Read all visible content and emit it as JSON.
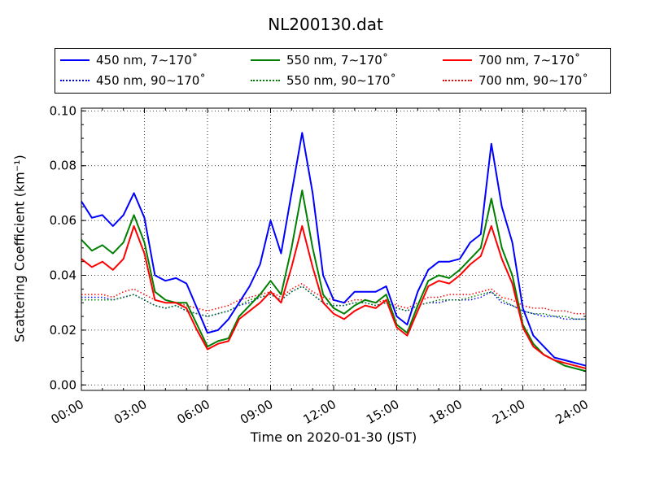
{
  "chart_data": {
    "type": "line",
    "title": "NL200130.dat",
    "xlabel": "Time on 2020-01-30 (JST)",
    "ylabel": "Scattering Coefficient (km⁻¹)",
    "x_ticks": [
      "00:00",
      "03:00",
      "06:00",
      "09:00",
      "12:00",
      "15:00",
      "18:00",
      "21:00",
      "24:00"
    ],
    "y_ticks": [
      "0.00",
      "0.02",
      "0.04",
      "0.06",
      "0.08",
      "0.10"
    ],
    "xlim": [
      0,
      24
    ],
    "ylim": [
      -0.002,
      0.101
    ],
    "grid": true,
    "legend_position": "top",
    "x": [
      0,
      0.5,
      1,
      1.5,
      2,
      2.5,
      3,
      3.5,
      4,
      4.5,
      5,
      5.5,
      6,
      6.5,
      7,
      7.5,
      8,
      8.5,
      9,
      9.5,
      10,
      10.5,
      11,
      11.5,
      12,
      12.5,
      13,
      13.5,
      14,
      14.5,
      15,
      15.5,
      16,
      16.5,
      17,
      17.5,
      18,
      18.5,
      19,
      19.5,
      20,
      20.5,
      21,
      21.5,
      22,
      22.5,
      23,
      23.5,
      24
    ],
    "series": [
      {
        "name": "450 nm, 7∼170˚",
        "color": "#0000ff",
        "style": "solid",
        "values": [
          0.067,
          0.061,
          0.062,
          0.058,
          0.062,
          0.07,
          0.061,
          0.04,
          0.038,
          0.039,
          0.037,
          0.028,
          0.019,
          0.02,
          0.024,
          0.03,
          0.036,
          0.044,
          0.06,
          0.048,
          0.07,
          0.092,
          0.07,
          0.04,
          0.031,
          0.03,
          0.034,
          0.034,
          0.034,
          0.036,
          0.025,
          0.022,
          0.034,
          0.042,
          0.045,
          0.045,
          0.046,
          0.052,
          0.055,
          0.088,
          0.065,
          0.052,
          0.028,
          0.018,
          0.014,
          0.01,
          0.009,
          0.008,
          0.007
        ]
      },
      {
        "name": "550 nm, 7∼170˚",
        "color": "#008000",
        "style": "solid",
        "values": [
          0.053,
          0.049,
          0.051,
          0.048,
          0.052,
          0.062,
          0.052,
          0.034,
          0.031,
          0.03,
          0.03,
          0.022,
          0.014,
          0.016,
          0.017,
          0.025,
          0.029,
          0.033,
          0.038,
          0.033,
          0.05,
          0.071,
          0.05,
          0.033,
          0.028,
          0.026,
          0.029,
          0.031,
          0.03,
          0.033,
          0.022,
          0.019,
          0.029,
          0.038,
          0.04,
          0.039,
          0.042,
          0.046,
          0.05,
          0.068,
          0.05,
          0.04,
          0.022,
          0.015,
          0.011,
          0.009,
          0.007,
          0.006,
          0.005
        ]
      },
      {
        "name": "700 nm, 7∼170˚",
        "color": "#ff0000",
        "style": "solid",
        "values": [
          0.046,
          0.043,
          0.045,
          0.042,
          0.046,
          0.058,
          0.048,
          0.031,
          0.03,
          0.03,
          0.028,
          0.02,
          0.013,
          0.015,
          0.016,
          0.024,
          0.027,
          0.03,
          0.034,
          0.03,
          0.043,
          0.058,
          0.043,
          0.03,
          0.026,
          0.024,
          0.027,
          0.029,
          0.028,
          0.031,
          0.021,
          0.018,
          0.027,
          0.036,
          0.038,
          0.037,
          0.04,
          0.044,
          0.047,
          0.058,
          0.046,
          0.037,
          0.021,
          0.014,
          0.011,
          0.009,
          0.008,
          0.007,
          0.006
        ]
      },
      {
        "name": "450 nm, 90∼170˚",
        "color": "#0000ff",
        "style": "dotted",
        "values": [
          0.032,
          0.032,
          0.032,
          0.031,
          0.032,
          0.033,
          0.031,
          0.029,
          0.028,
          0.029,
          0.027,
          0.026,
          0.025,
          0.026,
          0.027,
          0.029,
          0.03,
          0.032,
          0.033,
          0.031,
          0.034,
          0.036,
          0.033,
          0.03,
          0.029,
          0.029,
          0.03,
          0.03,
          0.029,
          0.03,
          0.028,
          0.027,
          0.029,
          0.03,
          0.03,
          0.031,
          0.031,
          0.031,
          0.032,
          0.034,
          0.03,
          0.029,
          0.027,
          0.026,
          0.025,
          0.025,
          0.024,
          0.024,
          0.024
        ]
      },
      {
        "name": "550 nm, 90∼170˚",
        "color": "#008000",
        "style": "dotted",
        "values": [
          0.031,
          0.031,
          0.031,
          0.031,
          0.032,
          0.033,
          0.031,
          0.029,
          0.028,
          0.029,
          0.027,
          0.026,
          0.025,
          0.026,
          0.027,
          0.029,
          0.031,
          0.032,
          0.033,
          0.031,
          0.034,
          0.036,
          0.033,
          0.03,
          0.029,
          0.029,
          0.03,
          0.03,
          0.029,
          0.03,
          0.028,
          0.027,
          0.029,
          0.03,
          0.031,
          0.031,
          0.031,
          0.032,
          0.033,
          0.034,
          0.031,
          0.029,
          0.027,
          0.026,
          0.026,
          0.025,
          0.025,
          0.024,
          0.024
        ]
      },
      {
        "name": "700 nm, 90∼170˚",
        "color": "#ff0000",
        "style": "dotted",
        "values": [
          0.033,
          0.033,
          0.033,
          0.032,
          0.034,
          0.035,
          0.033,
          0.031,
          0.03,
          0.03,
          0.029,
          0.028,
          0.027,
          0.028,
          0.029,
          0.031,
          0.032,
          0.033,
          0.034,
          0.032,
          0.035,
          0.037,
          0.034,
          0.032,
          0.031,
          0.03,
          0.031,
          0.031,
          0.03,
          0.031,
          0.029,
          0.028,
          0.03,
          0.032,
          0.032,
          0.033,
          0.033,
          0.033,
          0.034,
          0.035,
          0.032,
          0.031,
          0.029,
          0.028,
          0.028,
          0.027,
          0.027,
          0.026,
          0.026
        ]
      }
    ]
  }
}
